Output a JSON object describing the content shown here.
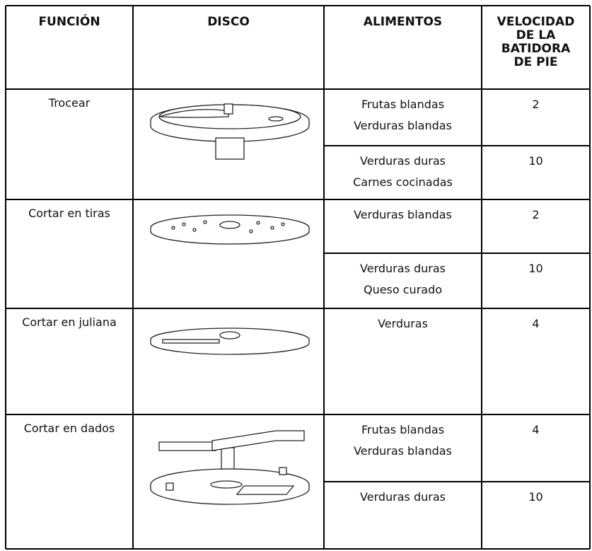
{
  "table": {
    "headers": [
      [
        "FUNCIÓN"
      ],
      [
        "DISCO"
      ],
      [
        "ALIMENTOS"
      ],
      [
        "VELOCIDAD",
        "DE LA",
        "BATIDORA",
        "DE PIE"
      ]
    ],
    "rows": [
      {
        "function": "Trocear",
        "entries": [
          {
            "foods": [
              "Frutas blandas",
              "Verduras blandas"
            ],
            "speed": "2"
          },
          {
            "foods": [
              "Verduras duras",
              "Carnes cocinadas"
            ],
            "speed": "10"
          }
        ]
      },
      {
        "function": "Cortar en tiras",
        "entries": [
          {
            "foods": [
              "Verduras blandas"
            ],
            "speed": "2"
          },
          {
            "foods": [
              "Verduras duras",
              "Queso curado"
            ],
            "speed": "10"
          }
        ]
      },
      {
        "function": "Cortar en juliana",
        "entries": [
          {
            "foods": [
              "Verduras"
            ],
            "speed": "4"
          }
        ]
      },
      {
        "function": "Cortar en dados",
        "entries": [
          {
            "foods": [
              "Frutas blandas",
              "Verduras blandas"
            ],
            "speed": "4"
          },
          {
            "foods": [
              "Verduras duras"
            ],
            "speed": "10"
          }
        ]
      }
    ]
  }
}
